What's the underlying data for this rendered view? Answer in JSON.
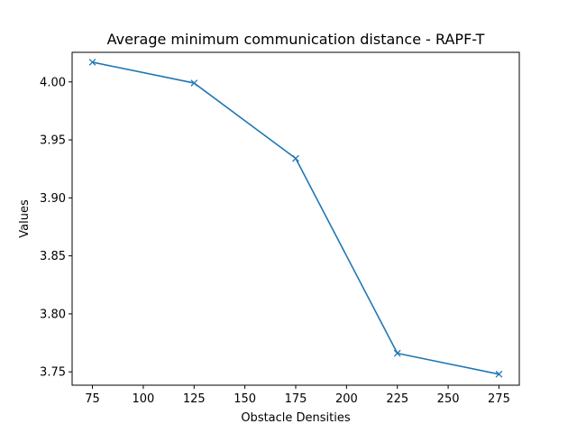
{
  "chart_data": {
    "type": "line",
    "title": "Average minimum communication distance - RAPF-T",
    "xlabel": "Obstacle Densities",
    "ylabel": "Values",
    "x": [
      75,
      125,
      175,
      225,
      275
    ],
    "series": [
      {
        "values": [
          4.017,
          3.999,
          3.934,
          3.766,
          3.748
        ],
        "color": "#1f77b4",
        "marker": "x"
      }
    ],
    "xlim": [
      65,
      285
    ],
    "ylim": [
      3.7385,
      4.0255
    ],
    "xticks": [
      75,
      100,
      125,
      150,
      175,
      200,
      225,
      250,
      275
    ],
    "xtick_labels": [
      "75",
      "100",
      "125",
      "150",
      "175",
      "200",
      "225",
      "250",
      "275"
    ],
    "yticks": [
      3.75,
      3.8,
      3.85,
      3.9,
      3.95,
      4.0
    ],
    "ytick_labels": [
      "3.75",
      "3.80",
      "3.85",
      "3.90",
      "3.95",
      "4.00"
    ],
    "grid": false,
    "legend": "none"
  }
}
